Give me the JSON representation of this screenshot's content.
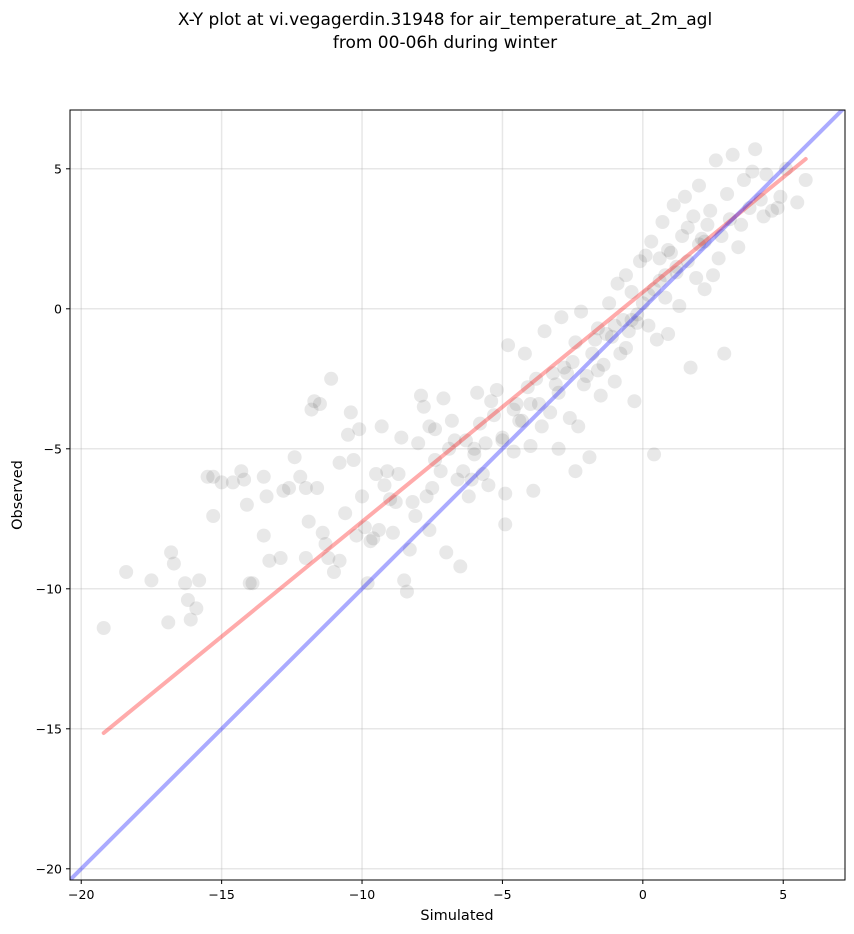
{
  "chart_data": {
    "type": "scatter",
    "title": [
      "X-Y plot at vi.vegagerdin.31948 for air_temperature_at_2m_agl",
      "from 00-06h during winter"
    ],
    "xlabel": "Simulated",
    "ylabel": "Observed",
    "xlim": [
      -20.4,
      7.2
    ],
    "ylim": [
      -20.4,
      7.1
    ],
    "xticks": [
      -20,
      -15,
      -10,
      -5,
      0,
      5
    ],
    "yticks": [
      -20,
      -15,
      -10,
      -5,
      0,
      5
    ],
    "xtick_labels": [
      "−20",
      "−15",
      "−10",
      "−5",
      "0",
      "5"
    ],
    "ytick_labels": [
      "−20",
      "−15",
      "−10",
      "−5",
      "0",
      "5"
    ],
    "grid": true,
    "points": {
      "color": "#000000",
      "opacity": 0.09,
      "x": [
        -19.2,
        -18.4,
        -17.5,
        -16.9,
        -16.7,
        -16.8,
        -16.3,
        -16.2,
        -16.1,
        -15.9,
        -15.8,
        -15.5,
        -15.3,
        -15.0,
        -14.6,
        -14.3,
        -14.2,
        -14.1,
        -14.0,
        -13.9,
        -13.5,
        -13.4,
        -13.3,
        -12.9,
        -12.6,
        -12.4,
        -12.2,
        -12.0,
        -11.8,
        -11.7,
        -11.6,
        -11.5,
        -11.4,
        -11.2,
        -11.1,
        -11.0,
        -10.8,
        -10.6,
        -10.4,
        -10.3,
        -10.1,
        -10.0,
        -9.9,
        -9.8,
        -9.6,
        -9.5,
        -9.3,
        -9.1,
        -9.0,
        -8.9,
        -8.7,
        -8.6,
        -8.5,
        -8.4,
        -8.2,
        -8.0,
        -7.9,
        -7.8,
        -7.6,
        -7.5,
        -7.4,
        -7.2,
        -7.0,
        -6.9,
        -6.8,
        -6.6,
        -6.5,
        -6.3,
        -6.2,
        -6.0,
        -5.9,
        -5.8,
        -5.6,
        -5.5,
        -5.4,
        -5.2,
        -5.0,
        -4.9,
        -4.8,
        -4.6,
        -4.5,
        -4.3,
        -4.2,
        -4.0,
        -3.9,
        -3.8,
        -3.6,
        -3.5,
        -3.3,
        -3.1,
        -3.0,
        -2.9,
        -2.7,
        -2.6,
        -2.4,
        -2.3,
        -2.2,
        -2.0,
        -1.9,
        -1.8,
        -1.6,
        -1.5,
        -1.4,
        -1.2,
        -1.1,
        -1.0,
        -0.9,
        -0.8,
        -0.7,
        -0.6,
        -0.5,
        -0.4,
        -0.3,
        -0.2,
        -0.1,
        0.0,
        0.1,
        0.2,
        0.3,
        0.4,
        0.5,
        0.6,
        0.7,
        0.8,
        0.9,
        1.0,
        1.1,
        1.2,
        1.3,
        1.4,
        1.5,
        1.6,
        1.7,
        1.8,
        1.9,
        2.0,
        2.1,
        2.2,
        2.3,
        2.5,
        2.6,
        2.8,
        3.0,
        3.2,
        3.4,
        3.6,
        3.8,
        4.0,
        4.2,
        4.4,
        4.6,
        4.9,
        5.1,
        5.5,
        5.8,
        -13.5,
        -12.0,
        -10.8,
        -9.2,
        -7.6,
        -6.1,
        -4.6,
        -3.2,
        -1.7,
        -0.4,
        0.9,
        2.4,
        3.9,
        -8.8,
        -7.4,
        -6.7,
        -5.3,
        -4.1,
        -2.8,
        -1.3,
        0.2,
        1.6,
        3.1,
        -9.7,
        -8.1,
        -6.4,
        -5.0,
        -3.7,
        -2.5,
        -1.0,
        0.6,
        2.0,
        -11.3,
        -9.4,
        -7.7,
        -6.0,
        -4.4,
        -3.0,
        -1.6,
        -0.2,
        1.2,
        2.7,
        4.3,
        -12.8,
        -11.9,
        -10.2,
        -8.3,
        -5.7,
        -4.0,
        -2.1,
        -0.6,
        0.8,
        2.2,
        3.5,
        -15.3,
        -10.5,
        -7.1,
        -4.9,
        -2.4,
        0.4,
        2.9,
        4.8
      ],
      "y": [
        -11.4,
        -9.4,
        -9.7,
        -11.2,
        -9.1,
        -8.7,
        -9.8,
        -10.4,
        -11.1,
        -10.7,
        -9.7,
        -6.0,
        -7.4,
        -6.2,
        -6.2,
        -5.8,
        -6.1,
        -7.0,
        -9.8,
        -9.8,
        -6.0,
        -6.7,
        -9.0,
        -8.9,
        -6.4,
        -5.3,
        -6.0,
        -8.9,
        -3.6,
        -3.3,
        -6.4,
        -3.4,
        -8.0,
        -8.9,
        -2.5,
        -9.4,
        -9.0,
        -7.3,
        -3.7,
        -5.4,
        -4.3,
        -6.7,
        -7.8,
        -9.8,
        -8.2,
        -5.9,
        -4.2,
        -5.8,
        -6.8,
        -8.0,
        -5.9,
        -4.6,
        -9.7,
        -10.1,
        -6.9,
        -4.8,
        -3.1,
        -3.5,
        -7.9,
        -6.4,
        -4.3,
        -5.8,
        -8.7,
        -5.0,
        -4.0,
        -6.1,
        -9.2,
        -4.7,
        -6.7,
        -5.0,
        -3.0,
        -4.1,
        -4.8,
        -6.3,
        -3.3,
        -2.9,
        -4.7,
        -6.6,
        -1.3,
        -5.1,
        -3.4,
        -4.0,
        -1.6,
        -3.4,
        -6.5,
        -2.5,
        -4.2,
        -0.8,
        -3.7,
        -2.7,
        -5.0,
        -0.3,
        -2.3,
        -3.9,
        -1.2,
        -4.2,
        -0.1,
        -2.4,
        -5.3,
        -1.6,
        -0.7,
        -3.1,
        -2.0,
        0.2,
        -1.0,
        -2.6,
        0.9,
        -1.6,
        -0.4,
        1.2,
        -0.8,
        0.6,
        -3.3,
        -0.2,
        1.7,
        0.2,
        1.9,
        -0.6,
        2.4,
        0.7,
        -1.1,
        1.8,
        3.1,
        0.4,
        -0.9,
        2.0,
        3.7,
        1.3,
        0.1,
        2.6,
        4.0,
        1.7,
        -2.1,
        3.3,
        1.1,
        4.4,
        2.5,
        0.7,
        3.0,
        1.2,
        5.3,
        2.6,
        4.1,
        5.5,
        2.2,
        4.6,
        3.6,
        5.7,
        3.9,
        4.8,
        3.5,
        4.0,
        5.0,
        3.8,
        4.6,
        -8.1,
        -6.4,
        -5.5,
        -6.3,
        -4.2,
        -6.1,
        -3.6,
        -2.3,
        -1.1,
        -0.4,
        2.1,
        3.5,
        4.9,
        -6.9,
        -5.4,
        -4.7,
        -3.8,
        -2.8,
        -2.1,
        -0.9,
        0.5,
        2.9,
        3.2,
        -8.3,
        -7.4,
        -5.8,
        -4.6,
        -3.4,
        -1.9,
        -0.6,
        1.0,
        2.3,
        -8.4,
        -7.9,
        -6.7,
        -5.2,
        -4.0,
        -3.0,
        -2.2,
        -0.5,
        1.5,
        1.8,
        3.3,
        -6.5,
        -7.6,
        -8.1,
        -8.6,
        -5.9,
        -4.9,
        -2.7,
        -1.4,
        1.2,
        2.4,
        3.0,
        -6.0,
        -4.5,
        -3.2,
        -7.7,
        -5.8,
        -5.2,
        -1.6,
        3.6
      ]
    },
    "lines": [
      {
        "name": "",
        "color": "#ff0000",
        "opacity": 0.33,
        "x": [
          -19.2,
          5.8
        ],
        "y": [
          -15.15,
          5.35
        ]
      },
      {
        "name": "",
        "color": "#0000ff",
        "opacity": 0.33,
        "x": [
          -20.4,
          7.2
        ],
        "y": [
          -20.4,
          7.2
        ]
      }
    ]
  }
}
